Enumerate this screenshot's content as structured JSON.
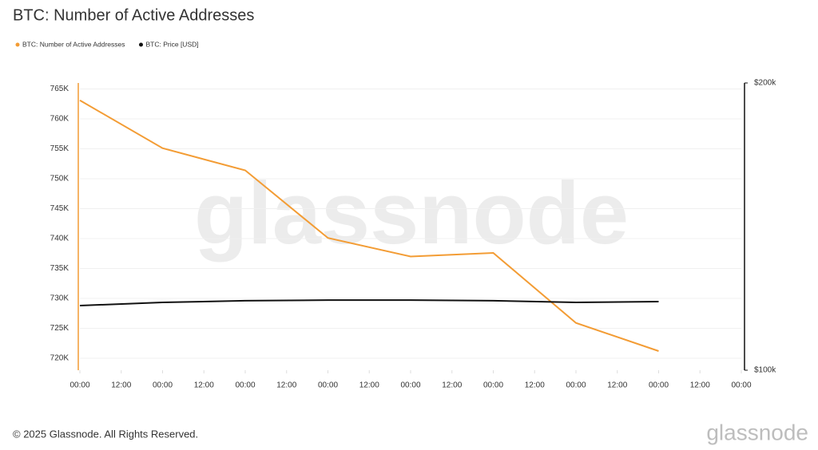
{
  "chart_data": {
    "type": "line",
    "title": "BTC: Number of Active Addresses",
    "watermark": "glassnode",
    "footer": "© 2025 Glassnode. All Rights Reserved.",
    "logo": "glassnode",
    "x": [
      0,
      24,
      48,
      72,
      96,
      120,
      144,
      168
    ],
    "xlim": [
      0,
      192
    ],
    "xticks": [
      {
        "value": 0,
        "label": "00:00"
      },
      {
        "value": 12,
        "label": "12:00"
      },
      {
        "value": 24,
        "label": "00:00"
      },
      {
        "value": 36,
        "label": "12:00"
      },
      {
        "value": 48,
        "label": "00:00"
      },
      {
        "value": 60,
        "label": "12:00"
      },
      {
        "value": 72,
        "label": "00:00"
      },
      {
        "value": 84,
        "label": "12:00"
      },
      {
        "value": 96,
        "label": "00:00"
      },
      {
        "value": 108,
        "label": "12:00"
      },
      {
        "value": 120,
        "label": "00:00"
      },
      {
        "value": 132,
        "label": "12:00"
      },
      {
        "value": 144,
        "label": "00:00"
      },
      {
        "value": 156,
        "label": "12:00"
      },
      {
        "value": 168,
        "label": "00:00"
      },
      {
        "value": 180,
        "label": "12:00"
      },
      {
        "value": 192,
        "label": "00:00"
      }
    ],
    "ylim": [
      718000,
      766000
    ],
    "yticks": [
      {
        "value": 720000,
        "label": "720K"
      },
      {
        "value": 725000,
        "label": "725K"
      },
      {
        "value": 730000,
        "label": "730K"
      },
      {
        "value": 735000,
        "label": "735K"
      },
      {
        "value": 740000,
        "label": "740K"
      },
      {
        "value": 745000,
        "label": "745K"
      },
      {
        "value": 750000,
        "label": "750K"
      },
      {
        "value": 755000,
        "label": "755K"
      },
      {
        "value": 760000,
        "label": "760K"
      },
      {
        "value": 765000,
        "label": "765K"
      }
    ],
    "y2lim": [
      100000,
      200000
    ],
    "y2ticks": [
      {
        "value": 100000,
        "label": "$100k"
      },
      {
        "value": 200000,
        "label": "$200k"
      }
    ],
    "grid": true,
    "legend": "top-left",
    "series": [
      {
        "name": "BTC: Number of Active Addresses",
        "color": "#f39c34",
        "values": [
          763100,
          755100,
          751400,
          740100,
          737000,
          737600,
          725900,
          721200
        ]
      },
      {
        "name": "BTC: Price [USD]",
        "color": "#111111",
        "axis": "y2",
        "values": [
          122500,
          123600,
          124200,
          124400,
          124400,
          124200,
          123600,
          123900
        ]
      }
    ]
  }
}
